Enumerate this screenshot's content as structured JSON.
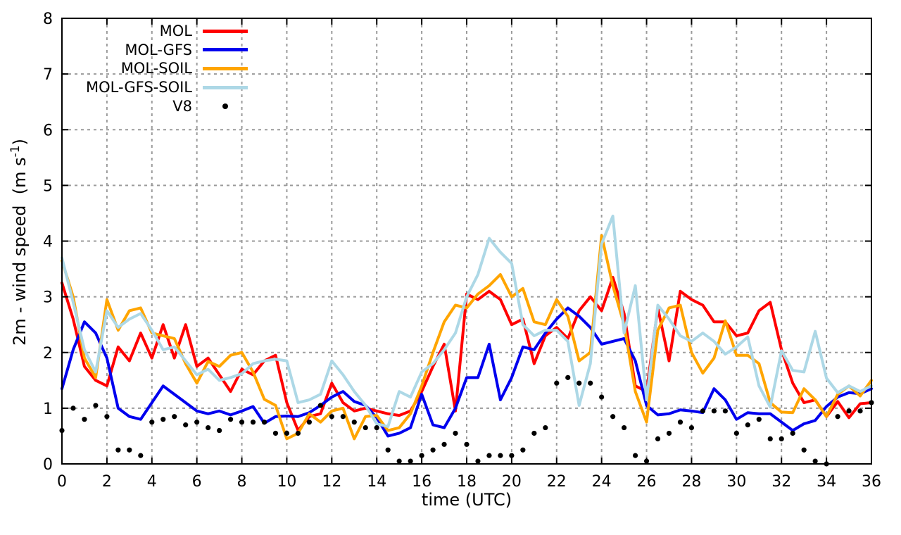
{
  "figure": {
    "background_color": "#ffffff",
    "border_color": "#000000",
    "grid_color": "#9b9b9b",
    "ylabel_base": "2m - wind speed  (m s",
    "ylabel_sup": "-1",
    "ylabel_close": ")"
  },
  "chart_data": {
    "type": "line",
    "title": "",
    "xlabel": "time (UTC)",
    "ylabel": "2m - wind speed (m s^-1)",
    "xlim": [
      0,
      36
    ],
    "ylim": [
      0,
      8
    ],
    "xticks": [
      0,
      2,
      4,
      6,
      8,
      10,
      12,
      14,
      16,
      18,
      20,
      22,
      24,
      26,
      28,
      30,
      32,
      34,
      36
    ],
    "yticks": [
      0,
      1,
      2,
      3,
      4,
      5,
      6,
      7,
      8
    ],
    "grid": true,
    "legend_position": "top-left-inside",
    "x": [
      0,
      0.5,
      1,
      1.5,
      2,
      2.5,
      3,
      3.5,
      4,
      4.5,
      5,
      5.5,
      6,
      6.5,
      7,
      7.5,
      8,
      8.5,
      9,
      9.5,
      10,
      10.5,
      11,
      11.5,
      12,
      12.5,
      13,
      13.5,
      14,
      14.5,
      15,
      15.5,
      16,
      16.5,
      17,
      17.5,
      18,
      18.5,
      19,
      19.5,
      20,
      20.5,
      21,
      21.5,
      22,
      22.5,
      23,
      23.5,
      24,
      24.5,
      25,
      25.5,
      26,
      26.5,
      27,
      27.5,
      28,
      28.5,
      29,
      29.5,
      30,
      30.5,
      31,
      31.5,
      32,
      32.5,
      33,
      33.5,
      34,
      34.5,
      35,
      35.5,
      36
    ],
    "series": [
      {
        "name": "MOL",
        "color": "#ff0000",
        "style": "line",
        "values": [
          3.25,
          2.6,
          1.75,
          1.5,
          1.4,
          2.1,
          1.85,
          2.35,
          1.9,
          2.5,
          1.9,
          2.5,
          1.75,
          1.9,
          1.6,
          1.3,
          1.7,
          1.6,
          1.85,
          1.95,
          1.1,
          0.6,
          0.85,
          0.9,
          1.45,
          1.1,
          0.95,
          1.0,
          0.95,
          0.9,
          0.87,
          0.95,
          1.3,
          1.75,
          2.15,
          0.95,
          3.05,
          2.95,
          3.1,
          2.95,
          2.5,
          2.6,
          1.8,
          2.3,
          2.45,
          2.25,
          2.75,
          3.0,
          2.75,
          3.35,
          2.7,
          1.4,
          1.3,
          2.8,
          1.85,
          3.1,
          2.95,
          2.85,
          2.55,
          2.55,
          2.3,
          2.35,
          2.75,
          2.9,
          2.05,
          1.45,
          1.1,
          1.15,
          0.85,
          1.12,
          0.83,
          1.08,
          1.1
        ]
      },
      {
        "name": "MOL-GFS",
        "color": "#0000ee",
        "style": "line",
        "values": [
          1.35,
          2.05,
          2.55,
          2.35,
          1.9,
          1.0,
          0.85,
          0.8,
          1.1,
          1.4,
          1.25,
          1.1,
          0.95,
          0.9,
          0.95,
          0.88,
          0.95,
          1.03,
          0.73,
          0.85,
          0.86,
          0.85,
          0.92,
          1.05,
          1.2,
          1.3,
          1.12,
          1.05,
          0.83,
          0.5,
          0.55,
          0.65,
          1.25,
          0.7,
          0.65,
          1.0,
          1.55,
          1.55,
          2.15,
          1.15,
          1.55,
          2.1,
          2.05,
          2.35,
          2.6,
          2.8,
          2.65,
          2.45,
          2.15,
          2.2,
          2.25,
          1.85,
          1.05,
          0.88,
          0.9,
          0.97,
          0.95,
          0.92,
          1.35,
          1.15,
          0.8,
          0.92,
          0.9,
          0.9,
          0.75,
          0.6,
          0.72,
          0.78,
          1.03,
          1.2,
          1.28,
          1.26,
          1.35
        ]
      },
      {
        "name": "MOL-SOIL",
        "color": "#ffa500",
        "style": "line",
        "values": [
          3.65,
          3.0,
          1.9,
          1.55,
          2.95,
          2.4,
          2.75,
          2.8,
          2.35,
          2.3,
          2.25,
          1.8,
          1.45,
          1.84,
          1.75,
          1.95,
          2.0,
          1.65,
          1.16,
          1.05,
          0.45,
          0.55,
          0.9,
          0.75,
          0.95,
          1.0,
          0.45,
          0.85,
          0.87,
          0.6,
          0.65,
          0.9,
          1.4,
          2.0,
          2.55,
          2.85,
          2.8,
          3.05,
          3.2,
          3.4,
          3.0,
          3.15,
          2.55,
          2.5,
          2.95,
          2.65,
          1.85,
          2.0,
          4.1,
          3.2,
          2.5,
          1.3,
          0.75,
          2.4,
          2.8,
          2.85,
          2.0,
          1.63,
          1.9,
          2.57,
          1.95,
          1.95,
          1.8,
          1.1,
          0.93,
          0.92,
          1.35,
          1.15,
          0.85,
          1.25,
          1.4,
          1.22,
          1.5
        ]
      },
      {
        "name": "MOL-GFS-SOIL",
        "color": "#add8e6",
        "style": "line",
        "values": [
          3.7,
          2.9,
          2.05,
          1.65,
          2.75,
          2.45,
          2.6,
          2.7,
          2.4,
          2.05,
          2.1,
          1.85,
          1.6,
          1.7,
          1.5,
          1.55,
          1.62,
          1.8,
          1.85,
          1.88,
          1.85,
          1.1,
          1.15,
          1.25,
          1.85,
          1.6,
          1.3,
          1.05,
          0.72,
          0.67,
          1.3,
          1.2,
          1.65,
          1.8,
          2.05,
          2.35,
          3.0,
          3.4,
          4.05,
          3.8,
          3.6,
          2.5,
          2.3,
          2.4,
          2.4,
          2.2,
          1.05,
          1.8,
          3.95,
          4.45,
          2.35,
          3.2,
          1.15,
          2.85,
          2.6,
          2.3,
          2.2,
          2.35,
          2.2,
          1.97,
          2.1,
          2.28,
          1.4,
          1.02,
          2.03,
          1.68,
          1.65,
          2.38,
          1.54,
          1.28,
          1.4,
          1.3,
          1.4
        ]
      },
      {
        "name": "V8",
        "color": "#000000",
        "style": "points",
        "values": [
          0.6,
          1.0,
          0.8,
          1.05,
          0.85,
          0.25,
          0.25,
          0.15,
          0.75,
          0.8,
          0.85,
          0.7,
          0.75,
          0.65,
          0.6,
          0.8,
          0.75,
          0.75,
          0.75,
          0.55,
          0.55,
          0.55,
          0.75,
          1.05,
          0.85,
          0.85,
          0.75,
          0.65,
          0.65,
          0.25,
          0.05,
          0.05,
          0.15,
          0.25,
          0.35,
          0.55,
          0.35,
          0.05,
          0.15,
          0.15,
          0.15,
          0.25,
          0.55,
          0.65,
          1.45,
          1.55,
          1.45,
          1.45,
          1.2,
          0.85,
          0.65,
          0.15,
          0.05,
          0.45,
          0.55,
          0.75,
          0.65,
          0.95,
          0.95,
          0.95,
          0.55,
          0.7,
          0.8,
          0.45,
          0.45,
          0.55,
          0.25,
          0.05,
          0.0,
          0.85,
          0.95,
          0.95,
          1.1
        ]
      }
    ]
  }
}
